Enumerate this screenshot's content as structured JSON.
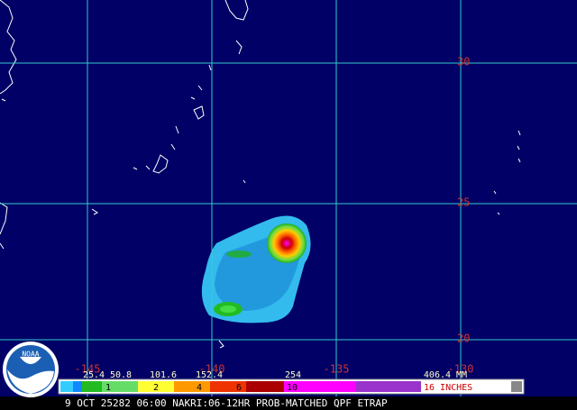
{
  "map": {
    "lat_labels": [
      "30",
      "25",
      "20"
    ],
    "lon_labels": [
      "-145",
      "-140",
      "-135",
      "-130"
    ],
    "logo": "NOAA",
    "legend": {
      "mm_labels": [
        "25.4",
        "50.8",
        "101.6",
        "152.4",
        "254",
        "406.4 MM"
      ],
      "inch_labels": [
        "1",
        "2",
        "4",
        "6",
        "10",
        "16 INCHES"
      ]
    },
    "caption": "9 OCT 25282 06:00 NAKRI:06-12HR PROB-MATCHED QPF ETRAP"
  }
}
